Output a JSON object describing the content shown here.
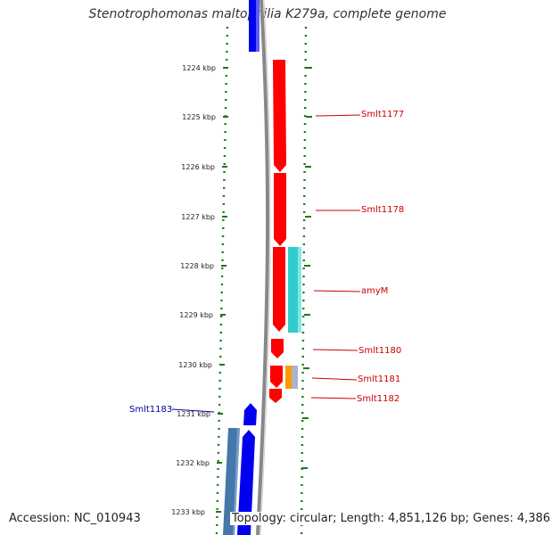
{
  "title": "Stenotrophomonas maltophilia K279a, complete genome",
  "footer": {
    "accession": "Accession: NC_010943",
    "summary": "Topology: circular; Length: 4,851,126 bp; Genes: 4,386"
  },
  "colors": {
    "tick": "#1a7a1a",
    "backbone": "#888888",
    "forward_gene": "#ff0000",
    "reverse_gene": "#0000ee",
    "cyan_feature": "#33cccc",
    "steelblue_feature": "#4477aa",
    "orange_feature": "#ff9900",
    "label_red": "#cc0000",
    "label_blue": "#000099"
  },
  "scale": {
    "labels": [
      "1224 kbp",
      "1225 kbp",
      "1226 kbp",
      "1227 kbp",
      "1228 kbp",
      "1229 kbp",
      "1230 kbp",
      "1231 kbp",
      "1232 kbp",
      "1233 kbp"
    ]
  },
  "genes": [
    {
      "name": "Smlt1177",
      "color": "red"
    },
    {
      "name": "Smlt1178",
      "color": "red"
    },
    {
      "name": "amyM",
      "color": "red"
    },
    {
      "name": "Smlt1180",
      "color": "red"
    },
    {
      "name": "Smlt1181",
      "color": "red"
    },
    {
      "name": "Smlt1182",
      "color": "red"
    },
    {
      "name": "Smlt1183",
      "color": "blue"
    }
  ]
}
